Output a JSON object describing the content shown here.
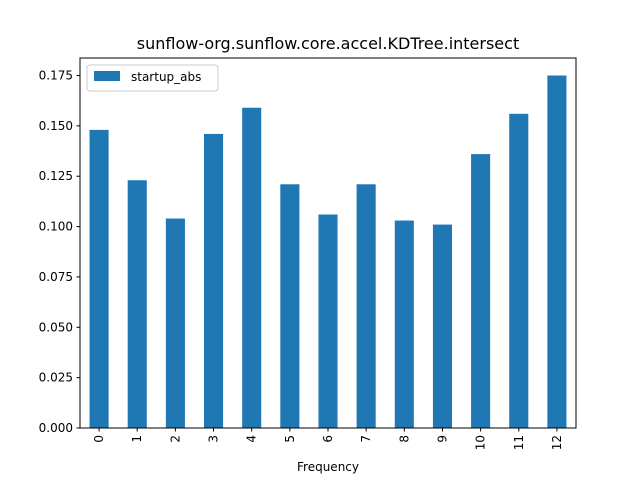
{
  "chart_data": {
    "type": "bar",
    "title": "sunflow-org.sunflow.core.accel.KDTree.intersect",
    "xlabel": "Frequency",
    "ylabel": "",
    "categories": [
      "0",
      "1",
      "2",
      "3",
      "4",
      "5",
      "6",
      "7",
      "8",
      "9",
      "10",
      "11",
      "12"
    ],
    "series": [
      {
        "name": "startup_abs",
        "color": "#1f77b4",
        "values": [
          0.148,
          0.123,
          0.104,
          0.146,
          0.159,
          0.121,
          0.106,
          0.121,
          0.103,
          0.101,
          0.136,
          0.156,
          0.175
        ]
      }
    ],
    "ylim": [
      0,
      0.1837
    ],
    "yticks": [
      0.0,
      0.025,
      0.05,
      0.075,
      0.1,
      0.125,
      0.15,
      0.175
    ],
    "ytick_labels": [
      "0.000",
      "0.025",
      "0.050",
      "0.075",
      "0.100",
      "0.125",
      "0.150",
      "0.175"
    ],
    "grid": false,
    "legend_position": "top-left"
  }
}
